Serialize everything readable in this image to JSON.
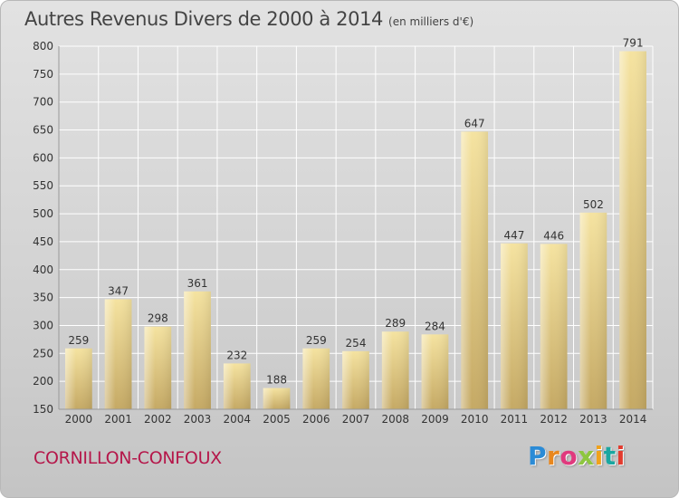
{
  "chart_data": {
    "type": "bar",
    "title": "Autres Revenus Divers de 2000 à 2014",
    "subtitle": "(en milliers d'€)",
    "categories": [
      "2000",
      "2001",
      "2002",
      "2003",
      "2004",
      "2005",
      "2006",
      "2007",
      "2008",
      "2009",
      "2010",
      "2011",
      "2012",
      "2013",
      "2014"
    ],
    "values": [
      259,
      347,
      298,
      361,
      232,
      188,
      259,
      254,
      289,
      284,
      647,
      447,
      446,
      502,
      791
    ],
    "ylim": [
      150,
      800
    ],
    "yticks": [
      150,
      200,
      250,
      300,
      350,
      400,
      450,
      500,
      550,
      600,
      650,
      700,
      750,
      800
    ],
    "grid": true,
    "bar_color": "#e8cf85",
    "data_labels": true
  },
  "footer": {
    "commune": "CORNILLON-CONFOUX",
    "brand": "Proxiti",
    "brand_colors": [
      "#2b8bd6",
      "#e8871e",
      "#e03a7e",
      "#8dc63f",
      "#f0a21c",
      "#1aa7a1",
      "#e23b2e"
    ]
  },
  "colors": {
    "commune_text": "#b5174a",
    "grid_line": "#ffffff",
    "axis_text": "#333333"
  }
}
